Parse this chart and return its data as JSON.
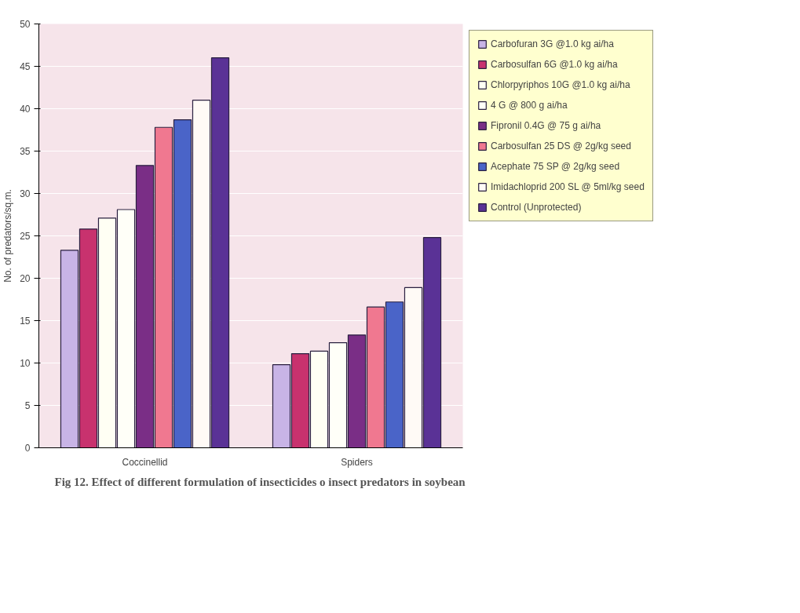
{
  "chart_data": {
    "type": "bar",
    "ylabel": "No. of predators/sq.m.",
    "categories": [
      "Coccinellid",
      "Spiders"
    ],
    "series": [
      {
        "name": "Carbofuran 3G @1.0 kg ai/ha",
        "color": "#c8b4e6",
        "values": [
          23.3,
          9.8
        ]
      },
      {
        "name": "Carbosulfan 6G @1.0 kg ai/ha",
        "color": "#c8326e",
        "values": [
          25.8,
          11.1
        ]
      },
      {
        "name": "Chlorpyriphos 10G @1.0 kg ai/ha",
        "color": "#fffff4",
        "values": [
          27.1,
          11.4
        ]
      },
      {
        "name": "4 G @ 800 g ai/ha",
        "color": "#fffff8",
        "values": [
          28.1,
          12.4
        ]
      },
      {
        "name": "Fipronil 0.4G @ 75 g ai/ha",
        "color": "#7a2e86",
        "values": [
          33.3,
          13.3
        ]
      },
      {
        "name": "Carbosulfan 25 DS @ 2g/kg seed",
        "color": "#f07890",
        "values": [
          37.8,
          16.6
        ]
      },
      {
        "name": "Acephate 75 SP @ 2g/kg seed",
        "color": "#4a64c8",
        "values": [
          38.7,
          17.2
        ]
      },
      {
        "name": "Imidachloprid 200 SL @ 5ml/kg seed",
        "color": "#fffaf6",
        "values": [
          41.0,
          18.9
        ]
      },
      {
        "name": "Control (Unprotected)",
        "color": "#5a3296",
        "values": [
          46.0,
          24.8
        ]
      }
    ],
    "ylim": [
      0,
      50
    ],
    "yticks": [
      0,
      5,
      10,
      15,
      20,
      25,
      30,
      35,
      40,
      45,
      50
    ],
    "grid": "y",
    "legend": "right",
    "annotations": [
      "Fig 12. Effect of different formulation of insecticides o insect predators in soybean"
    ]
  }
}
